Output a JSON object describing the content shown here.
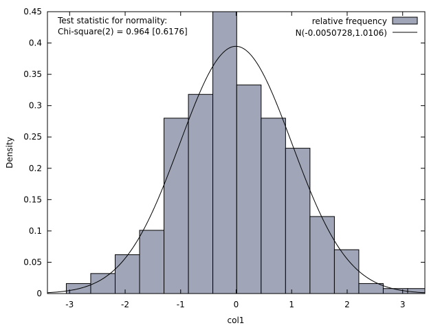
{
  "chart_data": {
    "type": "bar",
    "title": "",
    "xlabel": "col1",
    "ylabel": "Density",
    "xlim": [
      -3.4,
      3.4
    ],
    "ylim": [
      0,
      0.45
    ],
    "x_ticks": [
      "-3",
      "-2",
      "-1",
      "0",
      "1",
      "2",
      "3"
    ],
    "y_ticks": [
      "0",
      "0.05",
      "0.1",
      "0.15",
      "0.2",
      "0.25",
      "0.3",
      "0.35",
      "0.4",
      "0.45"
    ],
    "bins": [
      {
        "x0": -3.06,
        "x1": -2.62,
        "value": 0.016
      },
      {
        "x0": -2.62,
        "x1": -2.18,
        "value": 0.032
      },
      {
        "x0": -2.18,
        "x1": -1.74,
        "value": 0.062
      },
      {
        "x0": -1.74,
        "x1": -1.3,
        "value": 0.101
      },
      {
        "x0": -1.3,
        "x1": -0.86,
        "value": 0.28
      },
      {
        "x0": -0.86,
        "x1": -0.42,
        "value": 0.318
      },
      {
        "x0": -0.42,
        "x1": 0.01,
        "value": 0.45
      },
      {
        "x0": 0.01,
        "x1": 0.45,
        "value": 0.333
      },
      {
        "x0": 0.45,
        "x1": 0.89,
        "value": 0.28
      },
      {
        "x0": 0.89,
        "x1": 1.33,
        "value": 0.232
      },
      {
        "x0": 1.33,
        "x1": 1.77,
        "value": 0.123
      },
      {
        "x0": 1.77,
        "x1": 2.21,
        "value": 0.07
      },
      {
        "x0": 2.21,
        "x1": 2.65,
        "value": 0.016
      },
      {
        "x0": 2.65,
        "x1": 3.09,
        "value": 0.008
      },
      {
        "x0": 3.09,
        "x1": 3.53,
        "value": 0.008
      }
    ],
    "normal_curve": {
      "name": "N(-0.0050728,1.0106)",
      "mean": -0.0050728,
      "sd": 1.0106
    },
    "legend": {
      "position": "top-right",
      "entries": [
        "relative frequency",
        "N(-0.0050728,1.0106)"
      ]
    },
    "annotation": [
      "Test statistic for normality:",
      "Chi-square(2) = 0.964 [0.6176]"
    ],
    "colors": {
      "bar_fill": "#a0a6b8",
      "bar_stroke": "#000000",
      "curve": "#000000"
    }
  }
}
